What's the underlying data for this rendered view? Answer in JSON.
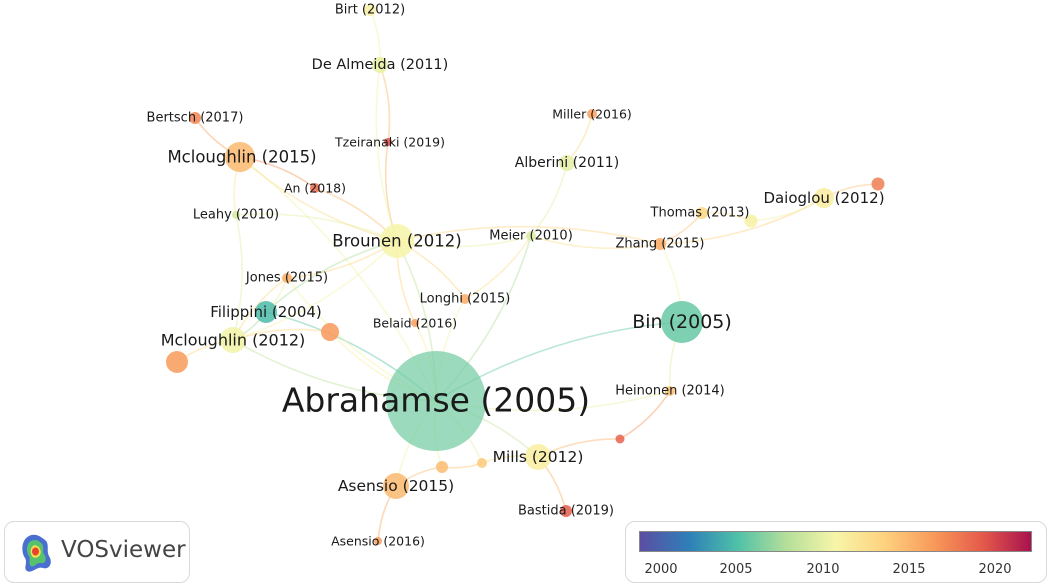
{
  "nodes": [
    {
      "id": "abrahamse2005",
      "label": "Abrahamse (2005)",
      "year": 2005.8
    },
    {
      "id": "bin2005",
      "label": "Bin (2005)",
      "year": 2005.4
    },
    {
      "id": "brounen2012",
      "label": "Brounen (2012)",
      "year": 2010.6
    },
    {
      "id": "mcloughlin2015",
      "label": "Mcloughlin (2015)",
      "year": 2014.6
    },
    {
      "id": "mcloughlin2012",
      "label": "Mcloughlin (2012)",
      "year": 2010.2
    },
    {
      "id": "filippini2004",
      "label": "Filippini (2004)",
      "year": 2004.5
    },
    {
      "id": "asensio2015",
      "label": "Asensio (2015)",
      "year": 2014.6
    },
    {
      "id": "mills2012",
      "label": "Mills (2012)",
      "year": 2011.1
    },
    {
      "id": "dealmeida2011",
      "label": "De Almeida (2011)",
      "year": 2009.8
    },
    {
      "id": "birt2012",
      "label": "Birt (2012)",
      "year": 2011.0
    },
    {
      "id": "alberini2011",
      "label": "Alberini (2011)",
      "year": 2009.7
    },
    {
      "id": "daioglou2012",
      "label": "Daioglou (2012)",
      "year": 2011.2
    },
    {
      "id": "meier2010",
      "label": "Meier (2010)",
      "year": 2009.2
    },
    {
      "id": "thomas2013",
      "label": "Thomas (2013)",
      "year": 2013.0
    },
    {
      "id": "zhang2015",
      "label": "Zhang (2015)",
      "year": 2015.5
    },
    {
      "id": "miller2016",
      "label": "Miller (2016)",
      "year": 2016.0
    },
    {
      "id": "bertsch2017",
      "label": "Bertsch (2017)",
      "year": 2017.2
    },
    {
      "id": "tzeiranaki2019",
      "label": "Tzeiranaki (2019)",
      "year": 2019.5
    },
    {
      "id": "an2018",
      "label": "An (2018)",
      "year": 2018.4
    },
    {
      "id": "leahy2010",
      "label": "Leahy (2010)",
      "year": 2009.0
    },
    {
      "id": "jones2015",
      "label": "Jones (2015)",
      "year": 2015.4
    },
    {
      "id": "longhi2015",
      "label": "Longhi (2015)",
      "year": 2015.4
    },
    {
      "id": "belaid2016",
      "label": "Belaid (2016)",
      "year": 2016.0
    },
    {
      "id": "heinonen2014",
      "label": "Heinonen (2014)",
      "year": 2014.2
    },
    {
      "id": "bastida2019",
      "label": "Bastida (2019)",
      "year": 2019.0
    },
    {
      "id": "asensio2016",
      "label": "Asensio (2016)",
      "year": 2016.2
    },
    {
      "id": "n_daioglou_far",
      "label": "",
      "year": 2017.5
    },
    {
      "id": "n_thomas_near",
      "label": "",
      "year": 2010.8
    },
    {
      "id": "n_mcl2012_red",
      "label": "",
      "year": 2016.3
    },
    {
      "id": "n_left_red",
      "label": "",
      "year": 2016.2
    },
    {
      "id": "n_mills_a",
      "label": "",
      "year": 2014.5
    },
    {
      "id": "n_mills_b",
      "label": "",
      "year": 2013.8
    },
    {
      "id": "n_magenta",
      "label": "",
      "year": 2018.8
    }
  ],
  "legend": {
    "ticks": [
      "2000",
      "2005",
      "2010",
      "2015",
      "2020"
    ],
    "colors": [
      "#5b4ea3",
      "#2e7fb8",
      "#4fc1a8",
      "#b5df9a",
      "#f7f5a8",
      "#fed27f",
      "#f89a5a",
      "#e55a4a",
      "#a8124e"
    ]
  },
  "logo": {
    "text": "VOSviewer"
  }
}
